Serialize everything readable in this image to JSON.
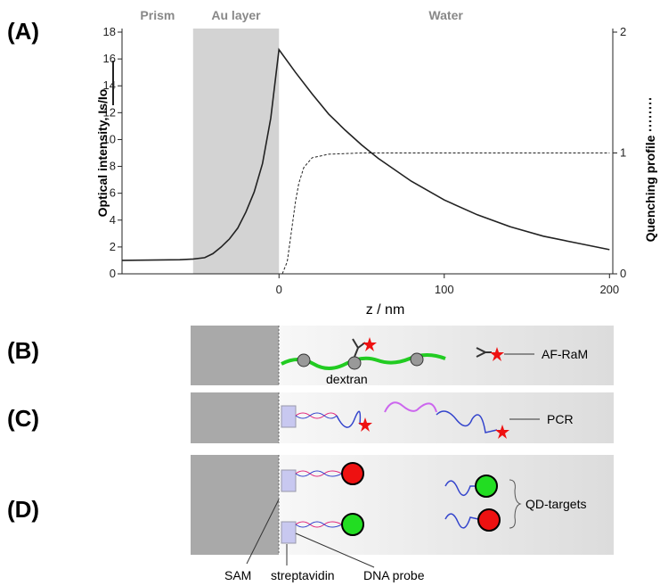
{
  "chart_data": {
    "type": "line",
    "panel_label": "(A)",
    "xlabel": "z / nm",
    "ylabel": "Optical intensity, Is/Io",
    "y2label": "Quenching profile",
    "xlim": [
      -95,
      202
    ],
    "xticks": [
      0,
      100,
      200
    ],
    "ylim": [
      0,
      18
    ],
    "yticks": [
      0,
      2,
      4,
      6,
      8,
      10,
      12,
      14,
      16,
      18
    ],
    "y2lim": [
      0,
      2
    ],
    "y2ticks": [
      0,
      1,
      2
    ],
    "regions": [
      {
        "label": "Prism",
        "xrange": [
          -95,
          -52
        ],
        "shaded": false
      },
      {
        "label": "Au layer",
        "xrange": [
          -52,
          0
        ],
        "shaded": true
      },
      {
        "label": "Water",
        "xrange": [
          0,
          202
        ],
        "shaded": false
      }
    ],
    "series": [
      {
        "color": "#222222",
        "dash": false,
        "x": [
          -95,
          -60,
          -52,
          -45,
          -40,
          -35,
          -30,
          -25,
          -20,
          -15,
          -10,
          -5,
          0,
          10,
          20,
          30,
          40,
          50,
          60,
          80,
          100,
          120,
          140,
          160,
          180,
          200
        ],
        "values": [
          1.0,
          1.05,
          1.1,
          1.2,
          1.5,
          2.0,
          2.6,
          3.4,
          4.6,
          6.1,
          8.2,
          11.6,
          16.7,
          15.0,
          13.4,
          11.9,
          10.7,
          9.6,
          8.6,
          6.9,
          5.5,
          4.4,
          3.5,
          2.8,
          2.3,
          1.8
        ]
      },
      {
        "color": "#222222",
        "dash": true,
        "axis": "y2",
        "x": [
          2,
          5,
          8,
          10,
          12,
          15,
          20,
          30,
          50,
          100,
          150,
          200
        ],
        "values": [
          0,
          0.1,
          0.4,
          0.6,
          0.75,
          0.88,
          0.96,
          0.99,
          1,
          1,
          1,
          1
        ]
      }
    ]
  },
  "diagram": {
    "panels": [
      "(B)",
      "(C)",
      "(D)"
    ],
    "labels": {
      "af_ram": "AF-RaM",
      "dextran": "dextran",
      "pcr": "PCR",
      "qd_targets": "QD-targets",
      "sam": "SAM",
      "streptavidin": "streptavidin",
      "dna_probe": "DNA probe"
    }
  }
}
